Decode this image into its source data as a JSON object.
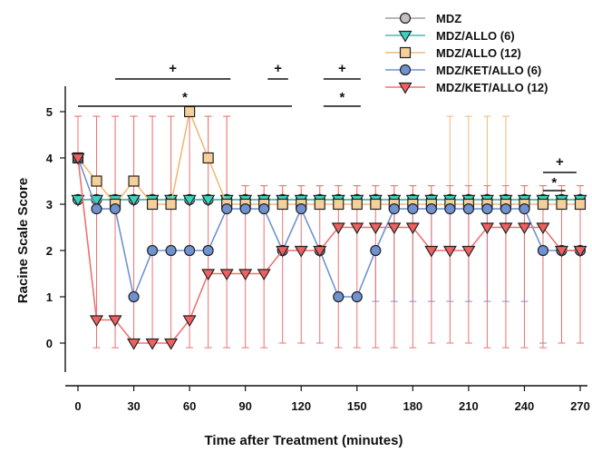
{
  "chart_data": {
    "type": "line",
    "xlabel": "Time after Treatment (minutes)",
    "ylabel": "Racine Scale Score",
    "xlim": [
      0,
      270
    ],
    "ylim": [
      0,
      5
    ],
    "xticks": [
      0,
      30,
      60,
      90,
      120,
      150,
      180,
      210,
      240,
      270
    ],
    "xtick_labels": [
      "0",
      "30",
      "60",
      "90",
      "120",
      "150",
      "180",
      "210",
      "240",
      "270"
    ],
    "yticks": [
      0,
      1,
      2,
      3,
      4,
      5
    ],
    "ytick_labels": [
      "0",
      "1",
      "2",
      "3",
      "4",
      "5"
    ],
    "grid": false,
    "legend_position": "top-right",
    "series": [
      {
        "name": "MDZ",
        "color": "#a0a0a0",
        "marker": "circle",
        "marker_fill": "#c0c0c0",
        "x": [
          0,
          10,
          20,
          30,
          40,
          50,
          60,
          70,
          80,
          90,
          100,
          110,
          120,
          130,
          140,
          150,
          160,
          170,
          180,
          190,
          200,
          210,
          220,
          230,
          240,
          250,
          260,
          270
        ],
        "y": [
          3.1,
          3.1,
          3.1,
          3.1,
          3.1,
          3.1,
          3.1,
          3.1,
          3.1,
          3.1,
          3.1,
          3.1,
          3.1,
          3.1,
          3.1,
          3.1,
          3.1,
          3.1,
          3.1,
          3.1,
          3.1,
          3.1,
          3.1,
          3.1,
          3.1,
          3.1,
          3.1,
          3.1
        ]
      },
      {
        "name": "MDZ/ALLO (6)",
        "color": "#40c0b0",
        "marker": "triangle-down",
        "marker_fill": "#40d0c0",
        "x": [
          0,
          10,
          20,
          30,
          40,
          50,
          60,
          70,
          80,
          90,
          100,
          110,
          120,
          130,
          140,
          150,
          160,
          170,
          180,
          190,
          200,
          210,
          220,
          230,
          240,
          250,
          260,
          270
        ],
        "y": [
          3.1,
          3.1,
          3.1,
          3.1,
          3.1,
          3.1,
          3.1,
          3.1,
          3.1,
          3.1,
          3.1,
          3.1,
          3.1,
          3.1,
          3.1,
          3.1,
          3.1,
          3.1,
          3.1,
          3.1,
          3.1,
          3.1,
          3.1,
          3.1,
          3.1,
          3.1,
          3.1,
          3.1
        ]
      },
      {
        "name": "MDZ/ALLO (12)",
        "color": "#f0b878",
        "marker": "square",
        "marker_fill": "#f6d09a",
        "x": [
          0,
          10,
          20,
          30,
          40,
          50,
          60,
          70,
          80,
          90,
          100,
          110,
          120,
          130,
          140,
          150,
          160,
          170,
          180,
          190,
          200,
          210,
          220,
          230,
          240,
          250,
          260,
          270
        ],
        "y": [
          4,
          3.5,
          3,
          3.5,
          3,
          3,
          5,
          4,
          3,
          3,
          3,
          3,
          3,
          3,
          3,
          3,
          3,
          3,
          3,
          3,
          3,
          3,
          3,
          3,
          3,
          3,
          3,
          3
        ],
        "err_upper": [
          0.9,
          1.4,
          1.9,
          1.4,
          1.9,
          1.9,
          0,
          0.9,
          1.9,
          0.4,
          0.4,
          0.4,
          0.4,
          0.4,
          0.4,
          0.4,
          0.4,
          0.4,
          0.4,
          0.4,
          1.9,
          1.9,
          1.9,
          1.9,
          0.4,
          0.4,
          0.4,
          0.4
        ]
      },
      {
        "name": "MDZ/KET/ALLO (6)",
        "color": "#6f93d0",
        "marker": "circle",
        "marker_fill": "#6f93d0",
        "x": [
          0,
          10,
          20,
          30,
          40,
          50,
          60,
          70,
          80,
          90,
          100,
          110,
          120,
          130,
          140,
          150,
          160,
          170,
          180,
          190,
          200,
          210,
          220,
          230,
          240,
          250,
          260,
          270
        ],
        "y": [
          4,
          2.9,
          2.9,
          1,
          2,
          2,
          2,
          2,
          2.9,
          2.9,
          2.9,
          2,
          2.9,
          2,
          1,
          1,
          2,
          2.9,
          2.9,
          2.9,
          2.9,
          2.9,
          2.9,
          2.9,
          2.9,
          2,
          2,
          2
        ],
        "err_lower": [
          0,
          0,
          0,
          0,
          0,
          0,
          0,
          0,
          0,
          0,
          0,
          0,
          0,
          0,
          0,
          0,
          1.1,
          2.0,
          2.0,
          2.0,
          2.0,
          2.0,
          2.0,
          2.0,
          2.0,
          2.0,
          2.0,
          2.0
        ]
      },
      {
        "name": "MDZ/KET/ALLO (12)",
        "color": "#f07070",
        "marker": "triangle-down",
        "marker_fill": "#f06060",
        "x": [
          0,
          10,
          20,
          30,
          40,
          50,
          60,
          70,
          80,
          90,
          100,
          110,
          120,
          130,
          140,
          150,
          160,
          170,
          180,
          190,
          200,
          210,
          220,
          230,
          240,
          250,
          260,
          270
        ],
        "y": [
          4,
          0.5,
          0.5,
          0,
          0,
          0,
          0.5,
          1.5,
          1.5,
          1.5,
          1.5,
          2,
          2,
          2,
          2.5,
          2.5,
          2.5,
          2.5,
          2.5,
          2,
          2,
          2,
          2.5,
          2.5,
          2.5,
          2.5,
          2,
          2
        ],
        "err_upper": [
          0.9,
          4.4,
          4.4,
          4.9,
          4.9,
          4.9,
          4.4,
          3.4,
          3.4,
          1.9,
          1.9,
          1.4,
          1.4,
          1.4,
          0.9,
          0.9,
          0.9,
          0.9,
          0.9,
          1.4,
          1.4,
          1.4,
          0.9,
          0.9,
          0.9,
          0.9,
          1.4,
          1.4
        ],
        "err_lower": [
          0,
          0.6,
          0.6,
          0,
          0,
          0,
          0.6,
          1.6,
          1.6,
          1.6,
          1.6,
          2.0,
          2.0,
          2.0,
          2.6,
          2.6,
          2.6,
          2.6,
          2.6,
          2.0,
          2.0,
          2.0,
          2.6,
          2.6,
          2.6,
          2.6,
          2.0,
          2.0
        ]
      }
    ],
    "significance": [
      {
        "symbol": "+",
        "x_start": 20,
        "x_end": 82,
        "level": 3
      },
      {
        "symbol": "+",
        "x_start": 102,
        "x_end": 113,
        "level": 3
      },
      {
        "symbol": "+",
        "x_start": 132,
        "x_end": 152,
        "level": 3
      },
      {
        "symbol": "*",
        "x_start": 0,
        "x_end": 115,
        "level": 2
      },
      {
        "symbol": "*",
        "x_start": 132,
        "x_end": 152,
        "level": 1
      },
      {
        "symbol": "+",
        "x_start": 250,
        "x_end": 268,
        "level": -1
      },
      {
        "symbol": "*",
        "x_start": 250,
        "x_end": 262,
        "level": -2
      }
    ]
  }
}
